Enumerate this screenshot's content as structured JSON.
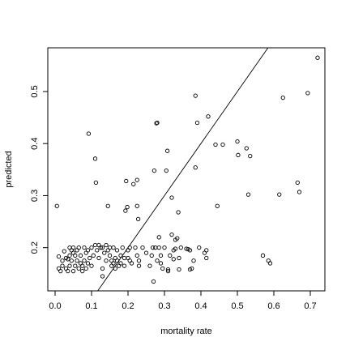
{
  "chart_data": {
    "type": "scatter",
    "title": "",
    "xlabel": "mortality rate",
    "ylabel": "predicted",
    "xlim": [
      -0.02,
      0.74
    ],
    "ylim": [
      0.117,
      0.584
    ],
    "xticks": [
      "0.0",
      "0.1",
      "0.2",
      "0.3",
      "0.4",
      "0.5",
      "0.6",
      "0.7"
    ],
    "yticks": [
      "0.2",
      "0.3",
      "0.4",
      "0.5"
    ],
    "grid": false,
    "reference_line": {
      "intercept": 0.0,
      "slope": 1.0
    },
    "points": [
      [
        0.005,
        0.28
      ],
      [
        0.01,
        0.183
      ],
      [
        0.01,
        0.16
      ],
      [
        0.015,
        0.155
      ],
      [
        0.02,
        0.175
      ],
      [
        0.02,
        0.165
      ],
      [
        0.025,
        0.193
      ],
      [
        0.03,
        0.18
      ],
      [
        0.03,
        0.16
      ],
      [
        0.035,
        0.178
      ],
      [
        0.035,
        0.155
      ],
      [
        0.04,
        0.2
      ],
      [
        0.04,
        0.185
      ],
      [
        0.04,
        0.165
      ],
      [
        0.045,
        0.195
      ],
      [
        0.045,
        0.175
      ],
      [
        0.05,
        0.2
      ],
      [
        0.05,
        0.19
      ],
      [
        0.05,
        0.155
      ],
      [
        0.055,
        0.185
      ],
      [
        0.055,
        0.165
      ],
      [
        0.06,
        0.195
      ],
      [
        0.06,
        0.175
      ],
      [
        0.065,
        0.2
      ],
      [
        0.065,
        0.16
      ],
      [
        0.07,
        0.185
      ],
      [
        0.07,
        0.17
      ],
      [
        0.075,
        0.165
      ],
      [
        0.075,
        0.155
      ],
      [
        0.08,
        0.2
      ],
      [
        0.08,
        0.175
      ],
      [
        0.085,
        0.16
      ],
      [
        0.085,
        0.19
      ],
      [
        0.09,
        0.17
      ],
      [
        0.09,
        0.195
      ],
      [
        0.092,
        0.419
      ],
      [
        0.095,
        0.18
      ],
      [
        0.1,
        0.2
      ],
      [
        0.1,
        0.165
      ],
      [
        0.105,
        0.185
      ],
      [
        0.11,
        0.205
      ],
      [
        0.11,
        0.371
      ],
      [
        0.112,
        0.325
      ],
      [
        0.115,
        0.195
      ],
      [
        0.12,
        0.205
      ],
      [
        0.12,
        0.18
      ],
      [
        0.125,
        0.2
      ],
      [
        0.13,
        0.2
      ],
      [
        0.13,
        0.16
      ],
      [
        0.13,
        0.145
      ],
      [
        0.135,
        0.19
      ],
      [
        0.14,
        0.175
      ],
      [
        0.14,
        0.205
      ],
      [
        0.145,
        0.195
      ],
      [
        0.145,
        0.28
      ],
      [
        0.15,
        0.185
      ],
      [
        0.15,
        0.2
      ],
      [
        0.155,
        0.175
      ],
      [
        0.155,
        0.165
      ],
      [
        0.16,
        0.2
      ],
      [
        0.16,
        0.17
      ],
      [
        0.165,
        0.18
      ],
      [
        0.165,
        0.16
      ],
      [
        0.17,
        0.175
      ],
      [
        0.17,
        0.195
      ],
      [
        0.175,
        0.165
      ],
      [
        0.18,
        0.185
      ],
      [
        0.18,
        0.17
      ],
      [
        0.185,
        0.2
      ],
      [
        0.19,
        0.18
      ],
      [
        0.19,
        0.165
      ],
      [
        0.193,
        0.271
      ],
      [
        0.195,
        0.328
      ],
      [
        0.198,
        0.278
      ],
      [
        0.2,
        0.195
      ],
      [
        0.2,
        0.18
      ],
      [
        0.205,
        0.175
      ],
      [
        0.205,
        0.2
      ],
      [
        0.21,
        0.17
      ],
      [
        0.215,
        0.322
      ],
      [
        0.22,
        0.2
      ],
      [
        0.225,
        0.28
      ],
      [
        0.225,
        0.33
      ],
      [
        0.225,
        0.185
      ],
      [
        0.228,
        0.255
      ],
      [
        0.23,
        0.175
      ],
      [
        0.23,
        0.165
      ],
      [
        0.24,
        0.2
      ],
      [
        0.25,
        0.19
      ],
      [
        0.26,
        0.165
      ],
      [
        0.265,
        0.185
      ],
      [
        0.268,
        0.2
      ],
      [
        0.27,
        0.135
      ],
      [
        0.272,
        0.348
      ],
      [
        0.275,
        0.2
      ],
      [
        0.278,
        0.439
      ],
      [
        0.28,
        0.44
      ],
      [
        0.28,
        0.175
      ],
      [
        0.285,
        0.22
      ],
      [
        0.285,
        0.2
      ],
      [
        0.29,
        0.185
      ],
      [
        0.29,
        0.17
      ],
      [
        0.295,
        0.16
      ],
      [
        0.3,
        0.2
      ],
      [
        0.305,
        0.348
      ],
      [
        0.308,
        0.386
      ],
      [
        0.31,
        0.158
      ],
      [
        0.31,
        0.155
      ],
      [
        0.315,
        0.185
      ],
      [
        0.32,
        0.225
      ],
      [
        0.32,
        0.296
      ],
      [
        0.325,
        0.195
      ],
      [
        0.325,
        0.178
      ],
      [
        0.33,
        0.198
      ],
      [
        0.33,
        0.215
      ],
      [
        0.335,
        0.218
      ],
      [
        0.338,
        0.268
      ],
      [
        0.34,
        0.18
      ],
      [
        0.34,
        0.158
      ],
      [
        0.345,
        0.2
      ],
      [
        0.36,
        0.198
      ],
      [
        0.365,
        0.197
      ],
      [
        0.37,
        0.195
      ],
      [
        0.37,
        0.158
      ],
      [
        0.375,
        0.16
      ],
      [
        0.38,
        0.175
      ],
      [
        0.385,
        0.492
      ],
      [
        0.385,
        0.354
      ],
      [
        0.39,
        0.44
      ],
      [
        0.395,
        0.2
      ],
      [
        0.41,
        0.19
      ],
      [
        0.415,
        0.18
      ],
      [
        0.415,
        0.195
      ],
      [
        0.42,
        0.452
      ],
      [
        0.44,
        0.398
      ],
      [
        0.445,
        0.28
      ],
      [
        0.46,
        0.398
      ],
      [
        0.5,
        0.404
      ],
      [
        0.502,
        0.378
      ],
      [
        0.525,
        0.391
      ],
      [
        0.53,
        0.302
      ],
      [
        0.535,
        0.376
      ],
      [
        0.57,
        0.185
      ],
      [
        0.585,
        0.175
      ],
      [
        0.59,
        0.17
      ],
      [
        0.615,
        0.302
      ],
      [
        0.625,
        0.488
      ],
      [
        0.665,
        0.325
      ],
      [
        0.67,
        0.307
      ],
      [
        0.693,
        0.497
      ],
      [
        0.72,
        0.565
      ]
    ]
  }
}
